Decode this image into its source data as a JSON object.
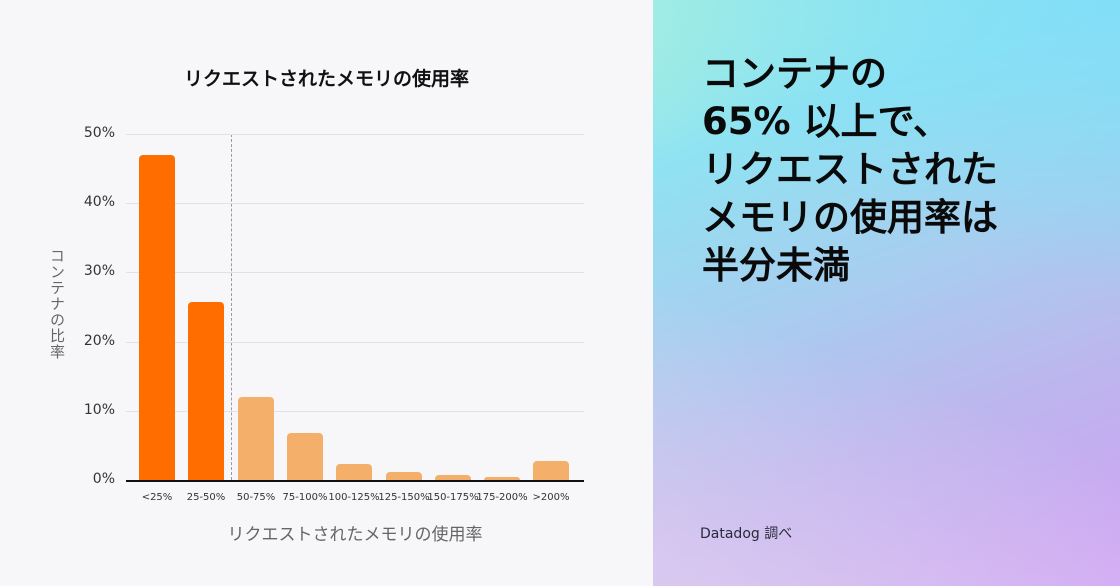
{
  "chart_data": {
    "type": "bar",
    "title": "リクエストされたメモリの使用率",
    "xlabel": "リクエストされたメモリの使用率",
    "ylabel": "コンテナの比率",
    "categories": [
      "<25%",
      "25-50%",
      "50-75%",
      "75-100%",
      "100-125%",
      "125-150%",
      "150-175%",
      "175-200%",
      ">200%"
    ],
    "values": [
      47.0,
      25.7,
      12.0,
      6.8,
      2.3,
      1.2,
      0.7,
      0.5,
      2.7
    ],
    "yticks": [
      "0%",
      "10%",
      "20%",
      "30%",
      "40%",
      "50%"
    ],
    "ylim": [
      0,
      50
    ],
    "grid": true,
    "divider_after_index": 1,
    "colors": {
      "highlight": "#ff6d00",
      "normal": "#f4b06a"
    },
    "highlighted_categories": [
      "<25%",
      "25-50%"
    ]
  },
  "headline": {
    "lines": [
      "コンテナの",
      "65% 以上で、",
      "リクエストされた",
      "メモリの使用率は",
      "半分未満"
    ]
  },
  "source": "Datadog 調べ"
}
